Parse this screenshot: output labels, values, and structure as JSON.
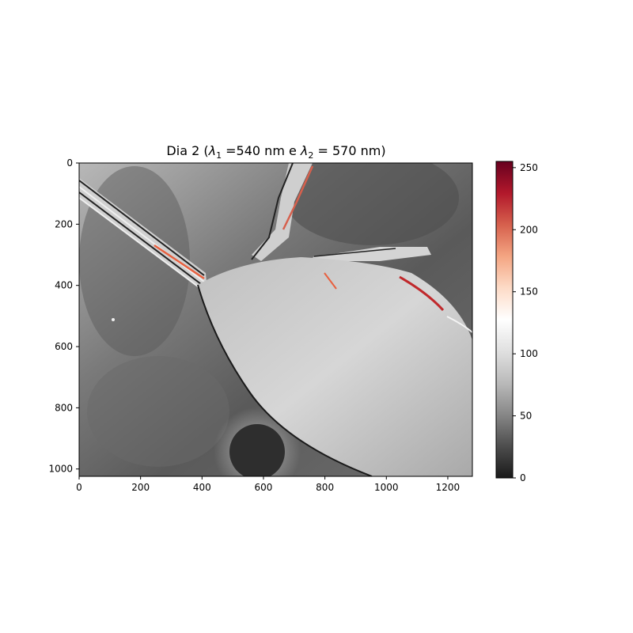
{
  "chart_data": {
    "type": "heatmap",
    "title_prefix": "Dia 2 (",
    "title_l1": "λ",
    "title_sub1": "1",
    "title_mid": " =540 nm e ",
    "title_l2": "λ",
    "title_sub2": "2",
    "title_suffix": " = 570 nm)",
    "xlabel": "",
    "ylabel": "",
    "xlim": [
      0,
      1280
    ],
    "ylim": [
      1024,
      0
    ],
    "xticks": [
      "0",
      "200",
      "400",
      "600",
      "800",
      "1000",
      "1200"
    ],
    "yticks": [
      "0",
      "200",
      "400",
      "600",
      "800",
      "1000"
    ],
    "colorbar": {
      "range": [
        0,
        255
      ],
      "ticks": [
        "0",
        "50",
        "100",
        "150",
        "200",
        "250"
      ],
      "colors": [
        "#1a1a1a",
        "#4d4d4d",
        "#878787",
        "#bababa",
        "#e0e0e0",
        "#ffffff",
        "#fddbc7",
        "#f4a582",
        "#d6604d",
        "#b2182b",
        "#67001f"
      ]
    },
    "grid": false
  }
}
